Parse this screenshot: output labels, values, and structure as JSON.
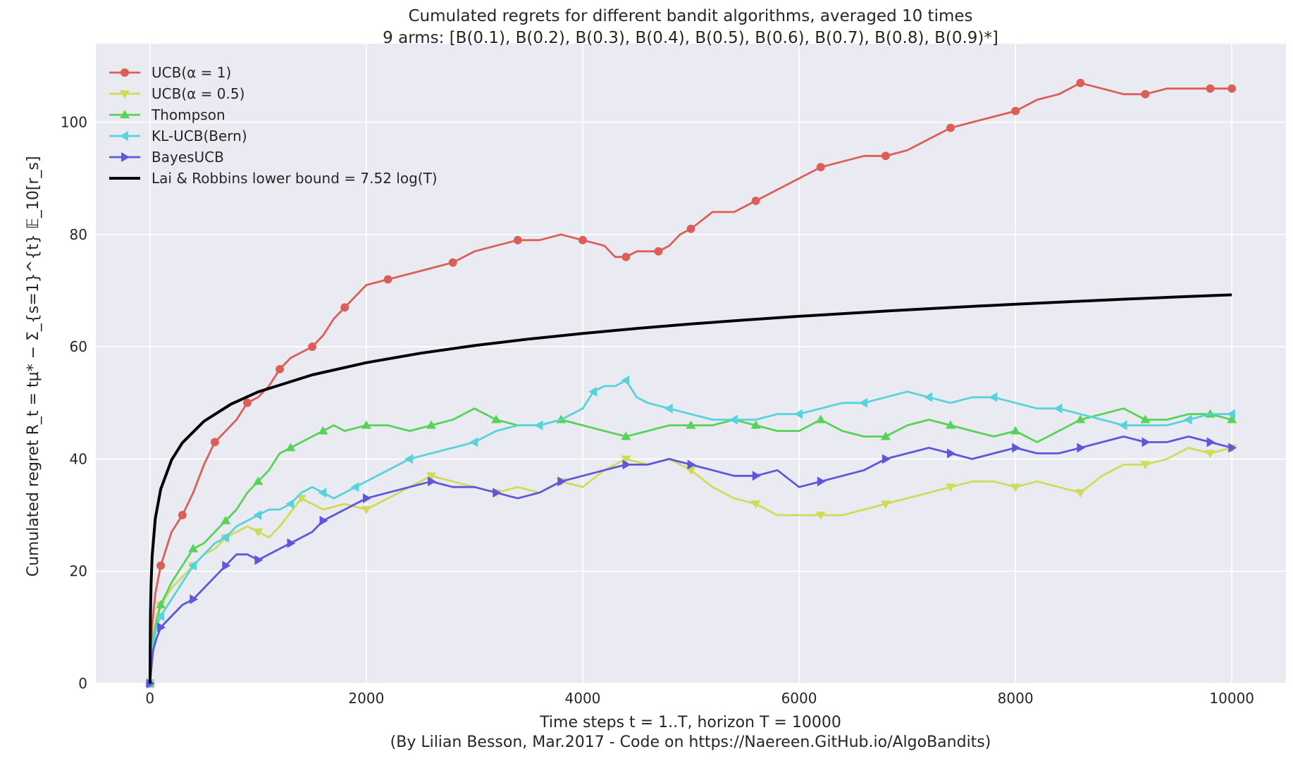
{
  "chart_data": {
    "type": "line",
    "title": "Cumulated regrets for different bandit algorithms, averaged 10 times",
    "subtitle": "9 arms: [B(0.1), B(0.2), B(0.3), B(0.4), B(0.5), B(0.6), B(0.7), B(0.8), B(0.9)*]",
    "xlabel": "Time steps t = 1..T, horizon T = 10000",
    "ylabel": "Cumulated regret R_t = tμ* − Σ_{s=1}^{t} 𝔼_10[r_s]",
    "caption": "(By Lilian Besson, Mar.2017 - Code on https://Naereen.GitHub.io/AlgoBandits)",
    "xlim": [
      -500,
      10500
    ],
    "ylim": [
      0,
      114
    ],
    "x_ticks": [
      0,
      2000,
      4000,
      6000,
      8000,
      10000
    ],
    "y_ticks": [
      0,
      20,
      40,
      60,
      80,
      100
    ],
    "x_tick_labels": [
      "0",
      "2000",
      "4000",
      "6000",
      "8000",
      "10000"
    ],
    "y_tick_labels": [
      "0",
      "20",
      "40",
      "60",
      "80",
      "100"
    ],
    "grid": true,
    "background": "#eaeaf2",
    "legend_position": "top-left",
    "series": [
      {
        "name": "UCB(α = 1)",
        "color": "#db5f57",
        "marker": "circle",
        "x": [
          0,
          20,
          50,
          100,
          150,
          200,
          300,
          400,
          500,
          600,
          700,
          800,
          900,
          1000,
          1100,
          1200,
          1300,
          1400,
          1500,
          1600,
          1700,
          1800,
          1900,
          2000,
          2200,
          2400,
          2600,
          2800,
          3000,
          3200,
          3400,
          3600,
          3800,
          4000,
          4200,
          4300,
          4400,
          4500,
          4600,
          4700,
          4800,
          4900,
          5000,
          5200,
          5400,
          5600,
          5800,
          6000,
          6200,
          6400,
          6600,
          6800,
          7000,
          7200,
          7400,
          7600,
          7800,
          8000,
          8200,
          8400,
          8600,
          8800,
          9000,
          9200,
          9400,
          9600,
          9800,
          10000
        ],
        "values": [
          0,
          10,
          16,
          21,
          24,
          27,
          30,
          34,
          39,
          43,
          45,
          47,
          50,
          51,
          53,
          56,
          58,
          59,
          60,
          62,
          65,
          67,
          69,
          71,
          72,
          73,
          74,
          75,
          77,
          78,
          79,
          79,
          80,
          79,
          78,
          76,
          76,
          77,
          77,
          77,
          78,
          80,
          81,
          84,
          84,
          86,
          88,
          90,
          92,
          93,
          94,
          94,
          95,
          97,
          99,
          100,
          101,
          102,
          104,
          105,
          107,
          106,
          105,
          105,
          106,
          106,
          106,
          106
        ]
      },
      {
        "name": "UCB(α = 0.5)",
        "color": "#d0dc57",
        "marker": "triangle-down",
        "x": [
          0,
          30,
          60,
          100,
          200,
          300,
          400,
          500,
          600,
          700,
          800,
          900,
          1000,
          1100,
          1200,
          1400,
          1600,
          1800,
          2000,
          2200,
          2400,
          2600,
          2800,
          3000,
          3200,
          3400,
          3600,
          3800,
          4000,
          4200,
          4400,
          4600,
          4800,
          5000,
          5200,
          5400,
          5600,
          5800,
          6000,
          6200,
          6400,
          6600,
          6800,
          7000,
          7200,
          7400,
          7600,
          7800,
          8000,
          8200,
          8400,
          8600,
          8800,
          9000,
          9200,
          9400,
          9600,
          9800,
          10000
        ],
        "values": [
          0,
          8,
          12,
          14,
          17,
          19,
          21,
          23,
          24,
          26,
          27,
          28,
          27,
          26,
          28,
          33,
          31,
          32,
          31,
          33,
          35,
          37,
          36,
          35,
          34,
          35,
          34,
          36,
          35,
          38,
          40,
          39,
          40,
          38,
          35,
          33,
          32,
          30,
          30,
          30,
          30,
          31,
          32,
          33,
          34,
          35,
          36,
          36,
          35,
          36,
          35,
          34,
          37,
          39,
          39,
          40,
          42,
          41,
          42
        ]
      },
      {
        "name": "Thompson",
        "color": "#57d357",
        "marker": "triangle-up",
        "x": [
          0,
          30,
          60,
          100,
          200,
          300,
          400,
          500,
          600,
          700,
          800,
          900,
          1000,
          1100,
          1200,
          1300,
          1400,
          1500,
          1600,
          1700,
          1800,
          2000,
          2200,
          2400,
          2600,
          2800,
          3000,
          3200,
          3400,
          3600,
          3800,
          4000,
          4200,
          4400,
          4600,
          4800,
          5000,
          5200,
          5400,
          5600,
          5800,
          6000,
          6200,
          6400,
          6600,
          6800,
          7000,
          7200,
          7400,
          7600,
          7800,
          8000,
          8200,
          8400,
          8600,
          8800,
          9000,
          9200,
          9400,
          9600,
          9800,
          10000
        ],
        "values": [
          0,
          8,
          11,
          14,
          18,
          21,
          24,
          25,
          27,
          29,
          31,
          34,
          36,
          38,
          41,
          42,
          43,
          44,
          45,
          46,
          45,
          46,
          46,
          45,
          46,
          47,
          49,
          47,
          46,
          46,
          47,
          46,
          45,
          44,
          45,
          46,
          46,
          46,
          47,
          46,
          45,
          45,
          47,
          45,
          44,
          44,
          46,
          47,
          46,
          45,
          44,
          45,
          43,
          45,
          47,
          48,
          49,
          47,
          47,
          48,
          48,
          47
        ]
      },
      {
        "name": "KL-UCB(Bern)",
        "color": "#57d3db",
        "marker": "triangle-left",
        "x": [
          0,
          30,
          60,
          100,
          200,
          300,
          400,
          500,
          600,
          700,
          800,
          900,
          1000,
          1100,
          1200,
          1300,
          1400,
          1500,
          1600,
          1700,
          1800,
          1900,
          2000,
          2200,
          2400,
          2600,
          2800,
          3000,
          3200,
          3400,
          3600,
          3800,
          4000,
          4100,
          4200,
          4300,
          4400,
          4500,
          4600,
          4800,
          5000,
          5200,
          5400,
          5600,
          5800,
          6000,
          6200,
          6400,
          6600,
          6800,
          7000,
          7200,
          7400,
          7600,
          7800,
          8000,
          8200,
          8400,
          8600,
          8800,
          9000,
          9200,
          9400,
          9600,
          9800,
          10000
        ],
        "values": [
          0,
          7,
          10,
          12,
          15,
          18,
          21,
          23,
          25,
          26,
          28,
          29,
          30,
          31,
          31,
          32,
          34,
          35,
          34,
          33,
          34,
          35,
          36,
          38,
          40,
          41,
          42,
          43,
          45,
          46,
          46,
          47,
          49,
          52,
          53,
          53,
          54,
          51,
          50,
          49,
          48,
          47,
          47,
          47,
          48,
          48,
          49,
          50,
          50,
          51,
          52,
          51,
          50,
          51,
          51,
          50,
          49,
          49,
          48,
          47,
          46,
          46,
          46,
          47,
          48,
          48
        ]
      },
      {
        "name": "BayesUCB",
        "color": "#5e57db",
        "marker": "triangle-right",
        "x": [
          0,
          30,
          60,
          100,
          200,
          300,
          400,
          500,
          600,
          700,
          800,
          900,
          1000,
          1100,
          1200,
          1300,
          1400,
          1500,
          1600,
          1700,
          1800,
          2000,
          2200,
          2400,
          2600,
          2800,
          3000,
          3200,
          3400,
          3600,
          3800,
          4000,
          4200,
          4400,
          4600,
          4800,
          5000,
          5200,
          5400,
          5600,
          5800,
          6000,
          6200,
          6400,
          6600,
          6800,
          7000,
          7200,
          7400,
          7600,
          7800,
          8000,
          8200,
          8400,
          8600,
          8800,
          9000,
          9200,
          9400,
          9600,
          9800,
          10000
        ],
        "values": [
          0,
          6,
          8,
          10,
          12,
          14,
          15,
          17,
          19,
          21,
          23,
          23,
          22,
          23,
          24,
          25,
          26,
          27,
          29,
          30,
          31,
          33,
          34,
          35,
          36,
          35,
          35,
          34,
          33,
          34,
          36,
          37,
          38,
          39,
          39,
          40,
          39,
          38,
          37,
          37,
          38,
          35,
          36,
          37,
          38,
          40,
          41,
          42,
          41,
          40,
          41,
          42,
          41,
          41,
          42,
          43,
          44,
          43,
          43,
          44,
          43,
          42
        ]
      },
      {
        "name": "Lai & Robbins lower bound = 7.52 log(T)",
        "color": "#000000",
        "marker": "none",
        "x": [
          1,
          2,
          5,
          10,
          20,
          50,
          100,
          200,
          300,
          500,
          750,
          1000,
          1500,
          2000,
          2500,
          3000,
          3500,
          4000,
          4500,
          5000,
          5500,
          6000,
          6500,
          7000,
          7500,
          8000,
          8500,
          9000,
          9500,
          10000
        ],
        "values": [
          0,
          5.21,
          12.1,
          17.32,
          22.53,
          29.42,
          34.63,
          39.84,
          42.89,
          46.73,
          49.78,
          51.95,
          54.99,
          57.16,
          58.84,
          60.21,
          61.37,
          62.37,
          63.26,
          64.05,
          64.77,
          65.42,
          66.02,
          66.58,
          67.1,
          67.59,
          68.04,
          68.47,
          68.88,
          69.26
        ]
      }
    ]
  }
}
